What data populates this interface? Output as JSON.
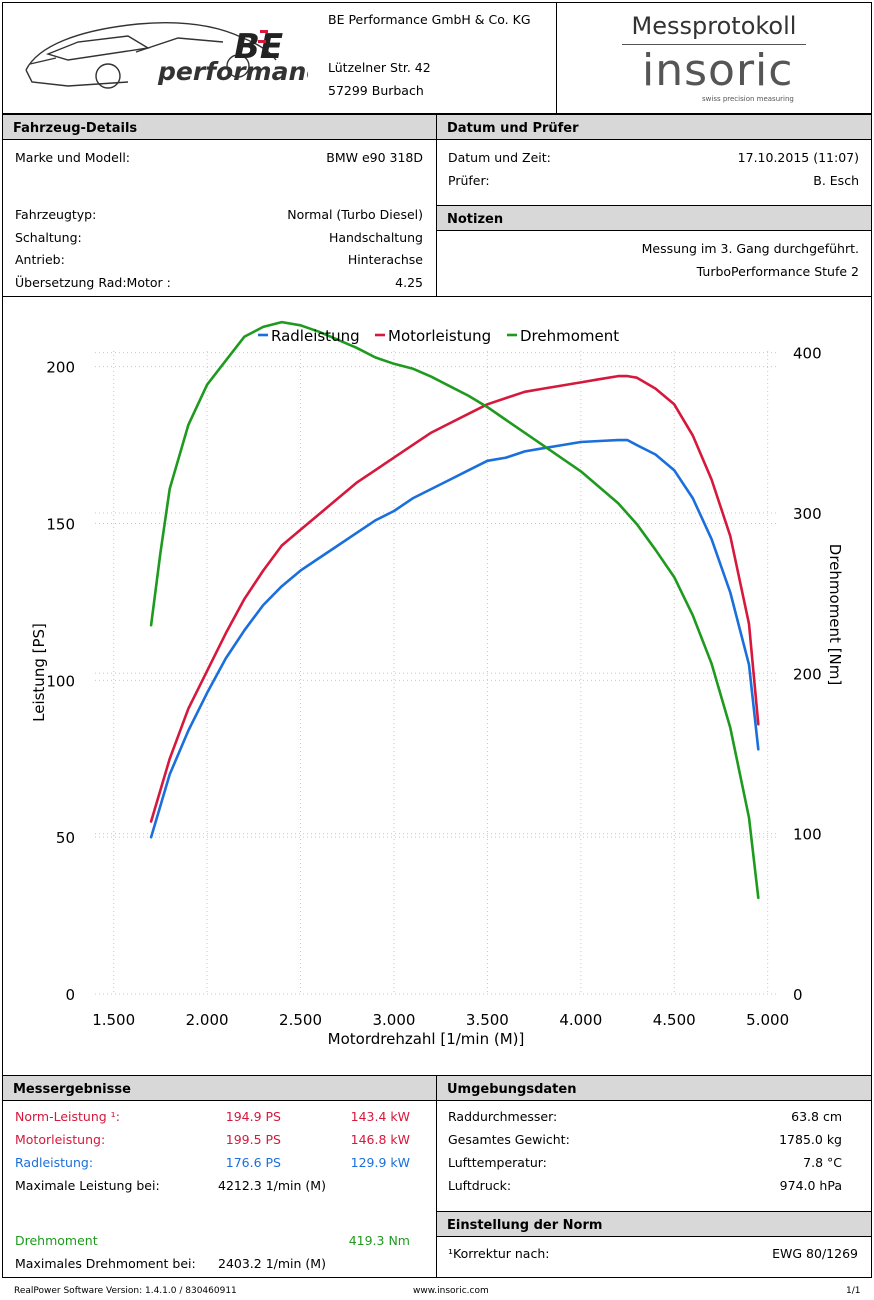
{
  "company": {
    "logo_text": "performance",
    "logo_mark": "BE",
    "name": "BE Performance GmbH & Co. KG",
    "street": "Lützelner Str. 42",
    "city": "57299 Burbach"
  },
  "protocol": {
    "title": "Messprotokoll",
    "brand": "insoric",
    "tagline": "swiss precision measuring"
  },
  "vehicle": {
    "header": "Fahrzeug-Details",
    "rows": [
      {
        "label": "Marke und Modell:",
        "value": "BMW e90 318D"
      },
      {
        "label": "Fahrzeugtyp:",
        "value": "Normal (Turbo Diesel)"
      },
      {
        "label": "Schaltung:",
        "value": "Handschaltung"
      },
      {
        "label": "Antrieb:",
        "value": "Hinterachse"
      },
      {
        "label": "Übersetzung Rad:Motor :",
        "value": "4.25"
      }
    ]
  },
  "date_tester": {
    "header": "Datum und Prüfer",
    "rows": [
      {
        "label": "Datum und Zeit:",
        "value": "17.10.2015 (11:07)"
      },
      {
        "label": "Prüfer:",
        "value": "B. Esch"
      }
    ]
  },
  "notes": {
    "header": "Notizen",
    "lines": [
      "Messung im 3. Gang durchgeführt.",
      "TurboPerformance Stufe 2"
    ]
  },
  "chart_data": {
    "type": "line",
    "xlabel": "Motordrehzahl [1/min (M)]",
    "ylabel": "Leistung [PS]",
    "y2label": "Drehmoment [Nm]",
    "xlim": [
      1400,
      5050
    ],
    "ylim": [
      0,
      205
    ],
    "y2lim": [
      0,
      401
    ],
    "x_ticks": [
      1500,
      2000,
      2500,
      3000,
      3500,
      4000,
      4500,
      5000
    ],
    "x_tick_labels": [
      "1.500",
      "2.000",
      "2.500",
      "3.000",
      "3.500",
      "4.000",
      "4.500",
      "5.000"
    ],
    "y_ticks": [
      0,
      50,
      100,
      150,
      200
    ],
    "y2_ticks": [
      0,
      100,
      200,
      300,
      400
    ],
    "legend_position": "top-center",
    "grid": true,
    "colors": {
      "Radleistung": "#1a6fdc",
      "Motorleistung": "#d6183c",
      "Drehmoment": "#1e9a1e"
    },
    "series": [
      {
        "name": "Radleistung",
        "axis": "left",
        "x": [
          1700,
          1800,
          1900,
          2000,
          2100,
          2200,
          2300,
          2400,
          2500,
          2600,
          2700,
          2800,
          2900,
          3000,
          3100,
          3200,
          3300,
          3400,
          3500,
          3600,
          3700,
          3800,
          3900,
          4000,
          4100,
          4200,
          4250,
          4300,
          4400,
          4500,
          4600,
          4700,
          4800,
          4900,
          4950
        ],
        "y": [
          50,
          70,
          84,
          96,
          107,
          116,
          124,
          130,
          135,
          139,
          143,
          147,
          151,
          154,
          158,
          161,
          164,
          167,
          170,
          171,
          173,
          174,
          175,
          176,
          176.3,
          176.6,
          176.6,
          175,
          172,
          167,
          158,
          145,
          128,
          105,
          78
        ]
      },
      {
        "name": "Motorleistung",
        "axis": "left",
        "x": [
          1700,
          1800,
          1900,
          2000,
          2100,
          2200,
          2300,
          2400,
          2500,
          2600,
          2700,
          2800,
          2900,
          3000,
          3100,
          3200,
          3300,
          3400,
          3500,
          3600,
          3700,
          3800,
          3900,
          4000,
          4100,
          4200,
          4250,
          4300,
          4400,
          4500,
          4600,
          4700,
          4800,
          4900,
          4950
        ],
        "y": [
          55,
          75,
          91,
          103,
          115,
          126,
          135,
          143,
          148,
          153,
          158,
          163,
          167,
          171,
          175,
          179,
          182,
          185,
          188,
          190,
          192,
          193,
          194,
          195,
          196,
          197,
          197,
          196.5,
          193,
          188,
          178,
          164,
          146,
          118,
          86
        ]
      },
      {
        "name": "Drehmoment",
        "axis": "right",
        "x": [
          1700,
          1750,
          1800,
          1900,
          2000,
          2100,
          2200,
          2300,
          2400,
          2500,
          2600,
          2700,
          2800,
          2900,
          3000,
          3100,
          3200,
          3300,
          3400,
          3500,
          3600,
          3700,
          3800,
          3900,
          4000,
          4100,
          4200,
          4300,
          4400,
          4500,
          4600,
          4700,
          4800,
          4900,
          4950
        ],
        "y": [
          230,
          275,
          315,
          355,
          380,
          395,
          410,
          416,
          419,
          417,
          413,
          408,
          403,
          397,
          393,
          390,
          385,
          379,
          373,
          366,
          358,
          350,
          342,
          334,
          326,
          316,
          306,
          293,
          277,
          260,
          236,
          206,
          166,
          110,
          60
        ]
      }
    ]
  },
  "results": {
    "header": "Messergebnisse",
    "norm": {
      "label": "Norm-Leistung ¹:",
      "ps": "194.9 PS",
      "kw": "143.4 kW"
    },
    "motor": {
      "label": "Motorleistung:",
      "ps": "199.5 PS",
      "kw": "146.8 kW"
    },
    "rad": {
      "label": "Radleistung:",
      "ps": "176.6 PS",
      "kw": "129.9 kW"
    },
    "max_power": {
      "label": "Maximale Leistung bei:",
      "value": "4212.3 1/min (M)"
    },
    "torque": {
      "label": "Drehmoment",
      "value": "419.3 Nm"
    },
    "max_torque": {
      "label": "Maximales Drehmoment bei:",
      "value": "2403.2 1/min (M)"
    }
  },
  "environment": {
    "header": "Umgebungsdaten",
    "rows": [
      {
        "label": "Raddurchmesser:",
        "value": "63.8 cm"
      },
      {
        "label": "Gesamtes Gewicht:",
        "value": "1785.0 kg"
      },
      {
        "label": "Lufttemperatur:",
        "value": "7.8 °C"
      },
      {
        "label": "Luftdruck:",
        "value": "974.0 hPa"
      }
    ]
  },
  "norm_setting": {
    "header": "Einstellung der Norm",
    "label": "¹Korrektur nach:",
    "value": "EWG 80/1269"
  },
  "footer": {
    "software": "RealPower Software Version: 1.4.1.0 / 830460911",
    "url": "www.insoric.com",
    "page": "1/1"
  }
}
